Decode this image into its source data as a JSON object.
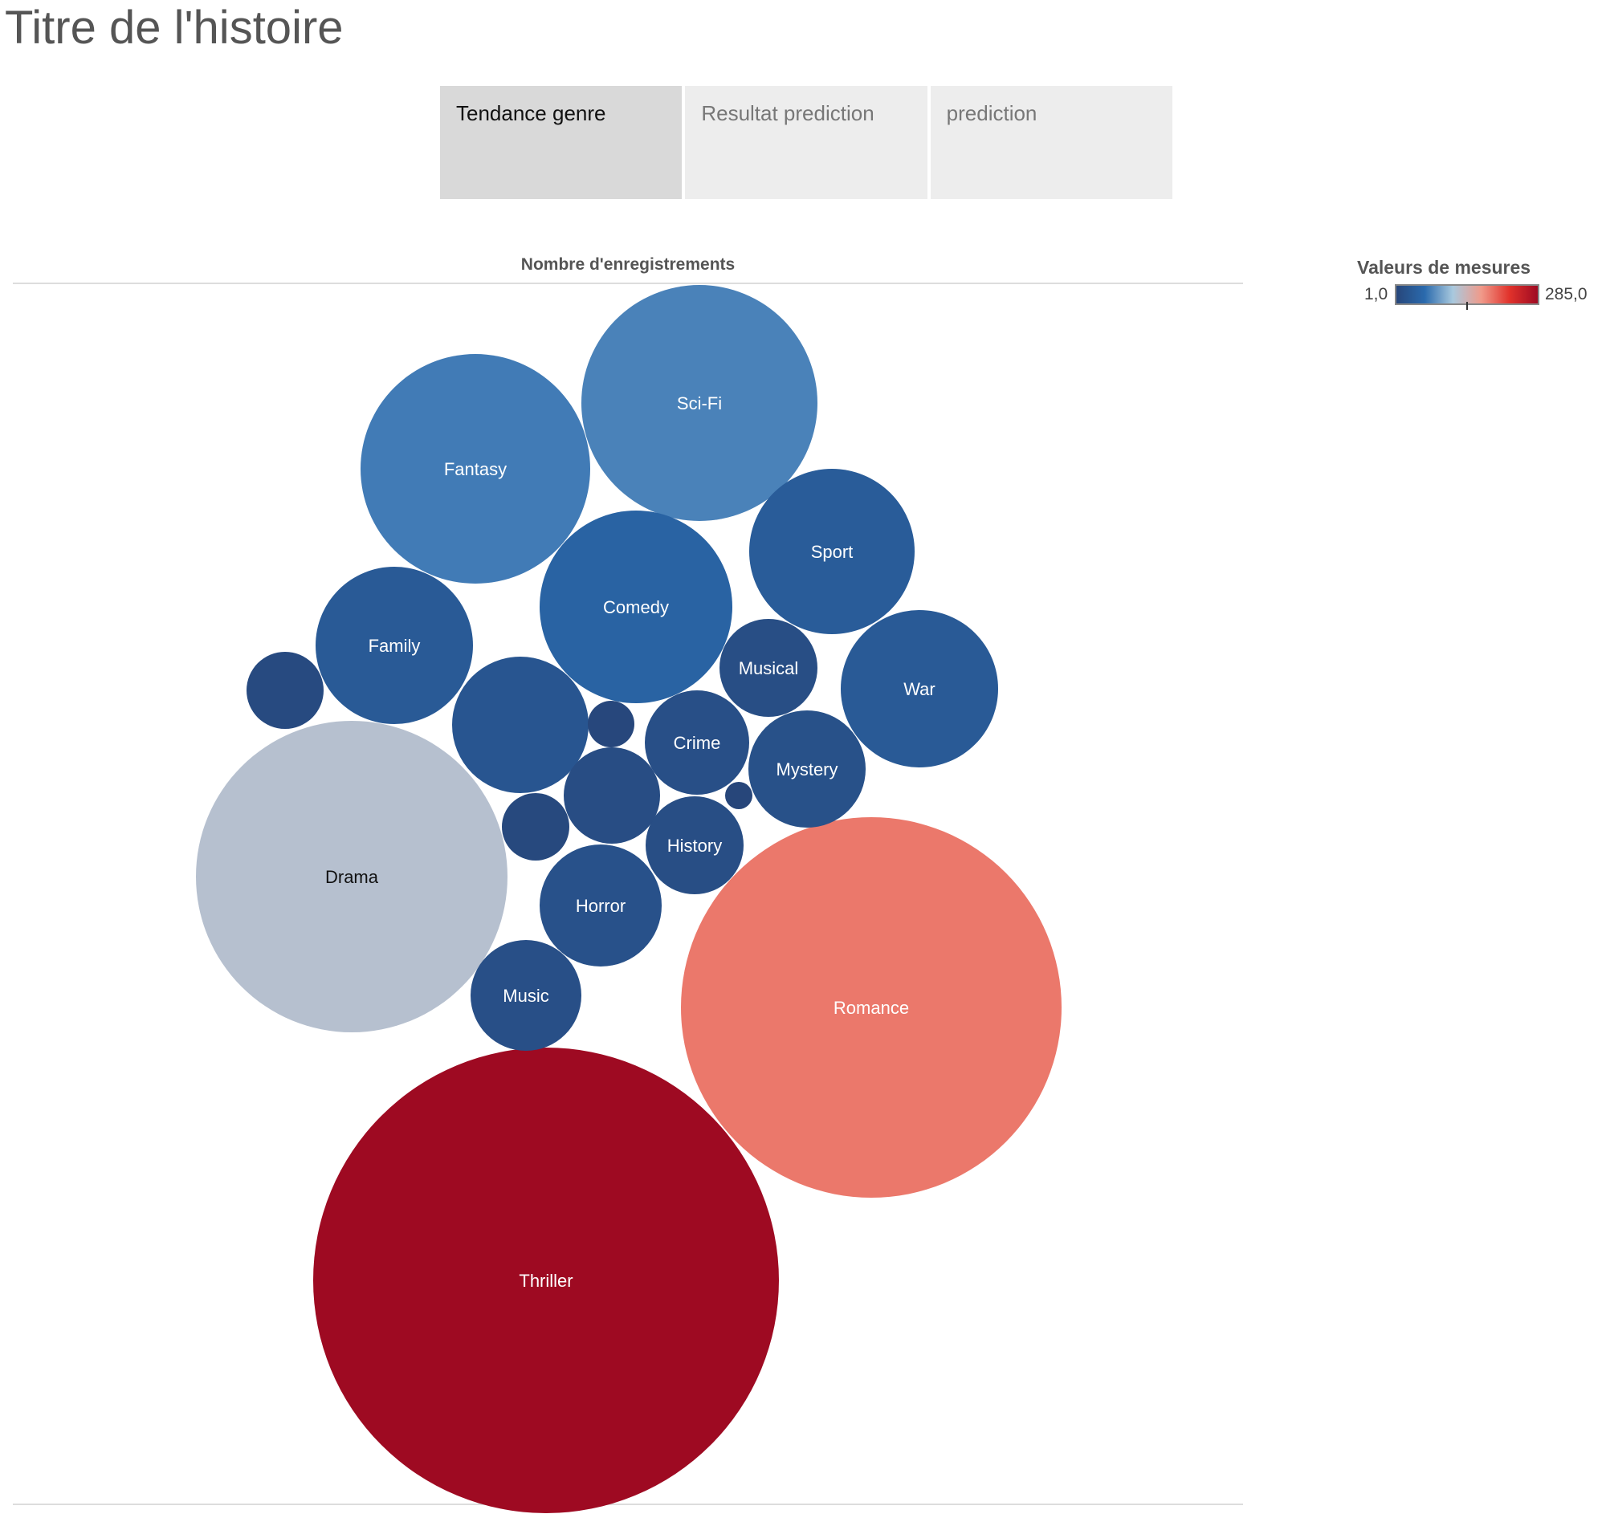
{
  "story": {
    "title": "Titre de l'histoire"
  },
  "tabs": [
    {
      "label": "Tendance genre",
      "active": true
    },
    {
      "label": "Resultat prediction",
      "active": false
    },
    {
      "label": "prediction",
      "active": false
    }
  ],
  "legend": {
    "title": "Valeurs de mesures",
    "min_label": "1,0",
    "max_label": "285,0",
    "min": 1.0,
    "max": 285.0,
    "colors": [
      "#27467a",
      "#2a6aad",
      "#a9c9de",
      "#f09a8a",
      "#e1322b",
      "#9e0a22"
    ]
  },
  "chart_data": {
    "type": "bubble",
    "title": "Nombre d'enregistrements",
    "measure": "Nombre d'enregistrements",
    "bubbles": [
      {
        "label": "Thriller",
        "value": 285
      },
      {
        "label": "Romance",
        "value": 190
      },
      {
        "label": "Drama",
        "value": 125
      },
      {
        "label": "Sci-Fi",
        "value": 72
      },
      {
        "label": "Fantasy",
        "value": 68
      },
      {
        "label": "Comedy",
        "value": 47
      },
      {
        "label": "War",
        "value": 32
      },
      {
        "label": "Family",
        "value": 32
      },
      {
        "label": "Sport",
        "value": 35
      },
      {
        "label": "",
        "value": 25
      },
      {
        "label": "Horror",
        "value": 19
      },
      {
        "label": "Mystery",
        "value": 18
      },
      {
        "label": "Crime",
        "value": 15
      },
      {
        "label": "Music",
        "value": 15
      },
      {
        "label": "History",
        "value": 13
      },
      {
        "label": "Musical",
        "value": 13
      },
      {
        "label": "",
        "value": 12
      },
      {
        "label": "",
        "value": 8
      },
      {
        "label": "",
        "value": 6
      },
      {
        "label": "",
        "value": 3
      },
      {
        "label": "",
        "value": 1
      }
    ]
  }
}
